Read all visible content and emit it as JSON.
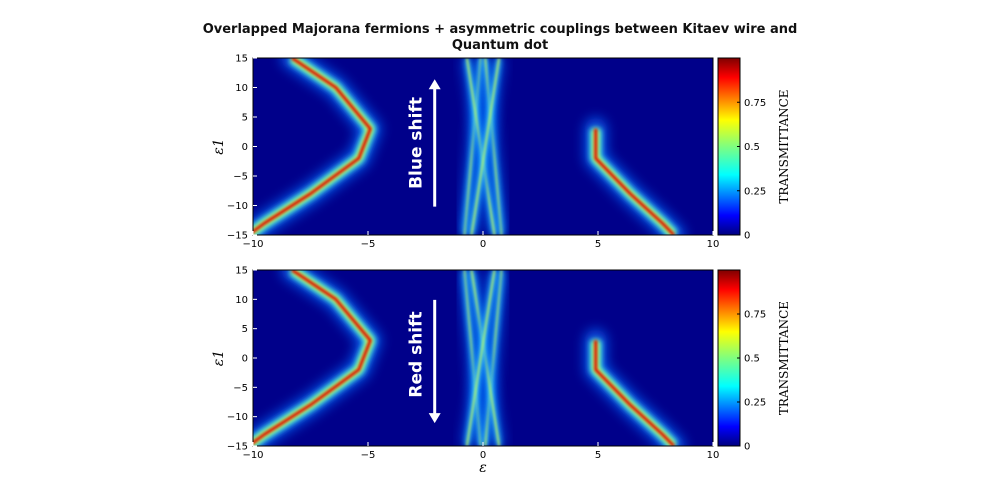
{
  "chart_data": [
    {
      "type": "heatmap",
      "title": "Overlapped Majorana fermions + asymmetric couplings between Kitaev wire and",
      "title_line2": "Quantum dot",
      "xlabel": "",
      "ylabel": "ε1",
      "xlim": [
        -10,
        10
      ],
      "ylim": [
        -15,
        15
      ],
      "x_ticks": [
        "−10",
        "−5",
        "0",
        "5",
        "10"
      ],
      "y_ticks": [
        "15",
        "10",
        "5",
        "0",
        "−5",
        "−10",
        "−15"
      ],
      "colorbar_label": "TRANSMITTANCE",
      "colorbar_ticks": [
        "0",
        "0.25",
        "0.5",
        "0.75"
      ],
      "colorbar_range": [
        0,
        1
      ],
      "annotation": "Blue shift",
      "arrow_direction": "up",
      "colormap": "jet",
      "bands": [
        {
          "name": "left",
          "points": [
            [
              -8.3,
              15
            ],
            [
              -6.4,
              10
            ],
            [
              -4.9,
              3
            ],
            [
              -5.4,
              -2
            ],
            [
              -7.5,
              -8
            ],
            [
              -9.5,
              -13
            ],
            [
              -10.2,
              -15
            ]
          ]
        },
        {
          "name": "right",
          "points": [
            [
              4.9,
              3
            ],
            [
              4.9,
              -2
            ],
            [
              6.4,
              -8
            ],
            [
              7.8,
              -13
            ],
            [
              8.3,
              -15
            ]
          ]
        },
        {
          "name": "center-a",
          "points": [
            [
              -0.1,
              15
            ],
            [
              -0.8,
              -15
            ]
          ]
        },
        {
          "name": "center-b",
          "points": [
            [
              0.1,
              15
            ],
            [
              0.8,
              -15
            ]
          ]
        },
        {
          "name": "center-c",
          "points": [
            [
              -0.7,
              15
            ],
            [
              0.5,
              -15
            ]
          ]
        },
        {
          "name": "center-d",
          "points": [
            [
              0.7,
              15
            ],
            [
              -0.5,
              -15
            ]
          ]
        }
      ]
    },
    {
      "type": "heatmap",
      "xlabel": "ε",
      "ylabel": "ε1",
      "xlim": [
        -10,
        10
      ],
      "ylim": [
        -15,
        15
      ],
      "x_ticks": [
        "−10",
        "−5",
        "0",
        "5",
        "10"
      ],
      "y_ticks": [
        "15",
        "10",
        "5",
        "0",
        "−5",
        "−10",
        "−15"
      ],
      "colorbar_label": "TRANSMITTANCE",
      "colorbar_ticks": [
        "0",
        "0.25",
        "0.5",
        "0.75"
      ],
      "colorbar_range": [
        0,
        1
      ],
      "annotation": "Red shift",
      "arrow_direction": "down",
      "colormap": "jet",
      "bands": [
        {
          "name": "left",
          "points": [
            [
              -8.3,
              15
            ],
            [
              -6.4,
              10
            ],
            [
              -4.9,
              3
            ],
            [
              -5.4,
              -2
            ],
            [
              -7.5,
              -8
            ],
            [
              -9.5,
              -13
            ],
            [
              -10.2,
              -15
            ]
          ]
        },
        {
          "name": "right",
          "points": [
            [
              4.9,
              3
            ],
            [
              4.9,
              -2
            ],
            [
              6.4,
              -8
            ],
            [
              7.8,
              -13
            ],
            [
              8.3,
              -15
            ]
          ]
        },
        {
          "name": "center-a",
          "points": [
            [
              -0.8,
              15
            ],
            [
              -0.1,
              -15
            ]
          ]
        },
        {
          "name": "center-b",
          "points": [
            [
              0.8,
              15
            ],
            [
              0.1,
              -15
            ]
          ]
        },
        {
          "name": "center-c",
          "points": [
            [
              -0.5,
              15
            ],
            [
              0.7,
              -15
            ]
          ]
        },
        {
          "name": "center-d",
          "points": [
            [
              0.5,
              15
            ],
            [
              -0.7,
              -15
            ]
          ]
        }
      ]
    }
  ]
}
